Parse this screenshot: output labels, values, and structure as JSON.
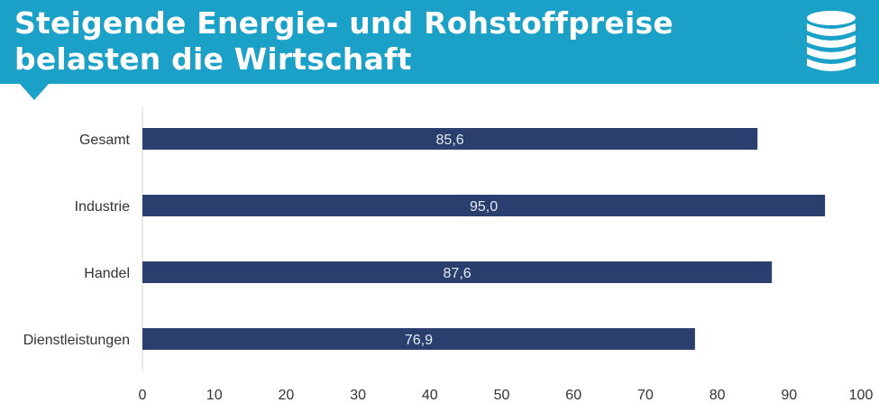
{
  "header": {
    "title_line1": "Steigende Energie- und Rohstoffpreise",
    "title_line2": "belasten die Wirtschaft",
    "icon": "coin-stack-icon",
    "banner_color": "#1ba0c8"
  },
  "chart_data": {
    "type": "bar",
    "orientation": "horizontal",
    "title": "",
    "xlabel": "",
    "ylabel": "",
    "categories": [
      "Gesamt",
      "Industrie",
      "Handel",
      "Dienstleistungen"
    ],
    "values": [
      85.6,
      95.0,
      87.6,
      76.9
    ],
    "value_labels": [
      "85,6",
      "95,0",
      "87,6",
      "76,9"
    ],
    "xlim": [
      0,
      100
    ],
    "xticks": [
      0,
      10,
      20,
      30,
      40,
      50,
      60,
      70,
      80,
      90,
      100
    ],
    "grid": false,
    "legend": "none",
    "bar_color": "#2a3f6e",
    "label_color": "#e6ebf3"
  }
}
